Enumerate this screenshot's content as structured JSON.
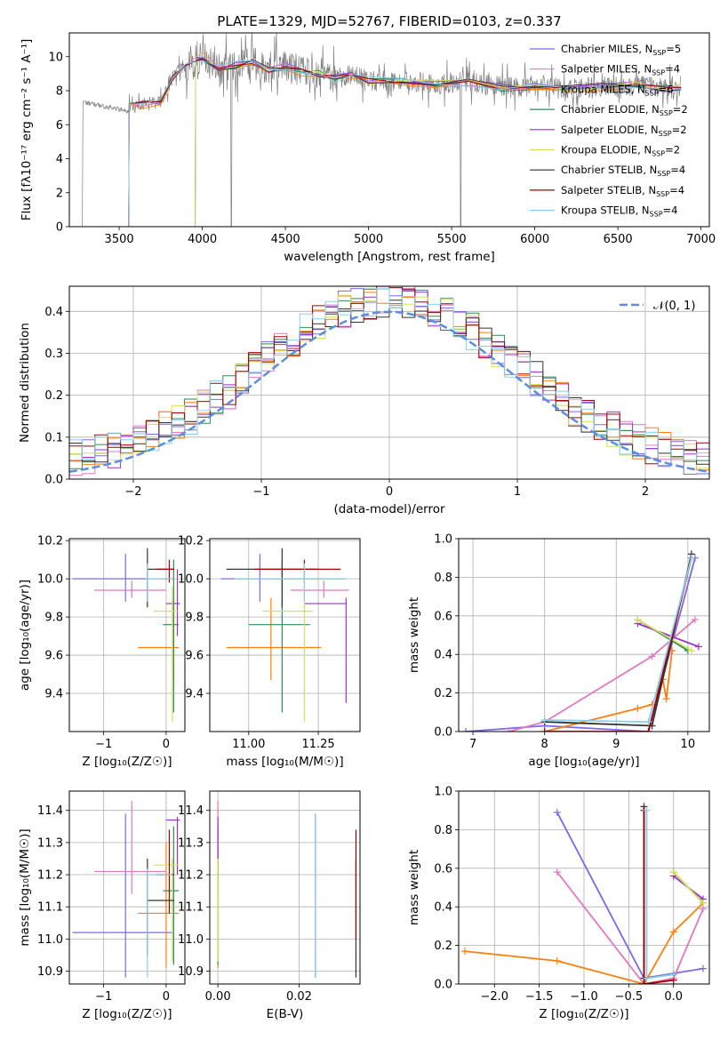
{
  "title": "PLATE=1329, MJD=52767, FIBERID=0103, z=0.337",
  "colors": {
    "chabrier_miles": "#7b68ee",
    "salpeter_miles": "#e377c2",
    "kroupa_miles": "#ff7f0e",
    "chabrier_elodie": "#2e8b57",
    "salpeter_elodie": "#9932cc",
    "kroupa_elodie": "#d4e157",
    "chabrier_stelib": "#333333",
    "salpeter_stelib": "#a50000",
    "kroupa_stelib": "#87ceeb",
    "data": "#808080",
    "gaussian": "#5a8ee0"
  },
  "chart_data": [
    {
      "id": "spectrum",
      "type": "line",
      "title": "PLATE=1329, MJD=52767, FIBERID=0103, z=0.337",
      "xlabel": "wavelength [Angstrom, rest frame]",
      "ylabel": "Flux [fλ10⁻¹⁷ erg cm⁻² s⁻¹ A⁻¹]",
      "xlim": [
        3200,
        7050
      ],
      "ylim": [
        0,
        11.4
      ],
      "xticks": [
        3500,
        4000,
        4500,
        5000,
        5500,
        6000,
        6500,
        7000
      ],
      "yticks": [
        0,
        2,
        4,
        6,
        8,
        10
      ],
      "legend_position": "top-right",
      "legend": [
        "Chabrier MILES, N_SSP=5",
        "Salpeter MILES, N_SSP=4",
        "Kroupa MILES, N_SSP=6",
        "Chabrier ELODIE, N_SSP=2",
        "Salpeter ELODIE, N_SSP=2",
        "Kroupa ELODIE, N_SSP=2",
        "Chabrier STELIB, N_SSP=4",
        "Salpeter STELIB, N_SSP=4",
        "Kroupa STELIB, N_SSP=4"
      ],
      "model_x": [
        3560,
        3650,
        3750,
        3820,
        3900,
        4000,
        4100,
        4200,
        4300,
        4400,
        4500,
        4600,
        4700,
        4800,
        4900,
        5000,
        5200,
        5400,
        5600,
        5800,
        6000,
        6200,
        6400,
        6600,
        6800,
        6880
      ],
      "model_y": [
        7.0,
        7.2,
        7.4,
        8.8,
        9.5,
        10.0,
        9.2,
        9.5,
        9.6,
        9.3,
        9.4,
        9.1,
        9.0,
        8.7,
        8.9,
        8.6,
        8.5,
        8.4,
        8.5,
        8.2,
        8.3,
        8.1,
        8.2,
        8.3,
        8.1,
        8.2
      ],
      "model_start": [
        3560,
        3560,
        3560,
        3960,
        3960,
        3960,
        3560,
        3560,
        3560
      ]
    },
    {
      "id": "residuals",
      "type": "histogram",
      "xlabel": "(data-model)/error",
      "ylabel": "Normed distribution",
      "xlim": [
        -2.5,
        2.5
      ],
      "ylim": [
        0,
        0.46
      ],
      "xticks": [
        -2,
        -1,
        0,
        1,
        2
      ],
      "yticks": [
        0.0,
        0.1,
        0.2,
        0.3,
        0.4
      ],
      "grid": true,
      "legend_position": "top-right",
      "legend": [
        "𝒩(0, 1)"
      ]
    },
    {
      "id": "age-vs-Z",
      "type": "errorbar",
      "xlabel": "Z [log₁₀(Z/Z☉)]",
      "ylabel": "age  [log₁₀(age/yr)]",
      "xlim": [
        -1.55,
        0.3
      ],
      "ylim": [
        9.2,
        10.21
      ],
      "xticks": [
        -1,
        0
      ],
      "yticks": [
        9.4,
        9.6,
        9.8,
        10.0,
        10.2
      ],
      "grid": true
    },
    {
      "id": "age-vs-mass",
      "type": "errorbar",
      "xlabel": "mass [log₁₀(M/M☉)]",
      "ylabel": "",
      "xlim": [
        10.86,
        11.4
      ],
      "ylim": [
        9.2,
        10.21
      ],
      "xticks": [
        11.0,
        11.25
      ],
      "yticks": [
        9.4,
        9.6,
        9.8,
        10.0,
        10.2
      ],
      "grid": true
    },
    {
      "id": "weight-vs-age",
      "type": "line",
      "xlabel": "age  [log₁₀(age/yr)]",
      "ylabel": "mass weight",
      "xlim": [
        6.8,
        10.3
      ],
      "ylim": [
        0,
        1.0
      ],
      "xticks": [
        7,
        8,
        9,
        10
      ],
      "yticks": [
        0.0,
        0.2,
        0.4,
        0.6,
        0.8,
        1.0
      ],
      "grid": true
    },
    {
      "id": "mass-vs-Z",
      "type": "errorbar",
      "xlabel": "Z [log₁₀(Z/Z☉)]",
      "ylabel": "mass [log₁₀(M/M☉)]",
      "xlim": [
        -1.55,
        0.3
      ],
      "ylim": [
        10.86,
        11.46
      ],
      "xticks": [
        -1,
        0
      ],
      "yticks": [
        10.9,
        11.0,
        11.1,
        11.2,
        11.3,
        11.4
      ],
      "grid": true
    },
    {
      "id": "mass-vs-ebv",
      "type": "errorbar",
      "xlabel": "E(B-V)",
      "ylabel": "",
      "xlim": [
        -0.002,
        0.035
      ],
      "ylim": [
        10.86,
        11.46
      ],
      "xticks": [
        0.0,
        0.02
      ],
      "yticks": [
        10.9,
        11.0,
        11.1,
        11.2,
        11.3,
        11.4
      ],
      "grid": true
    },
    {
      "id": "weight-vs-Z",
      "type": "line",
      "xlabel": "Z [log₁₀(Z/Z☉)]",
      "ylabel": "mass weight",
      "xlim": [
        -2.4,
        0.4
      ],
      "ylim": [
        0,
        1.0
      ],
      "xticks": [
        -2.0,
        -1.5,
        -1.0,
        -0.5,
        0.0
      ],
      "yticks": [
        0.0,
        0.2,
        0.4,
        0.6,
        0.8,
        1.0
      ],
      "grid": true
    }
  ]
}
